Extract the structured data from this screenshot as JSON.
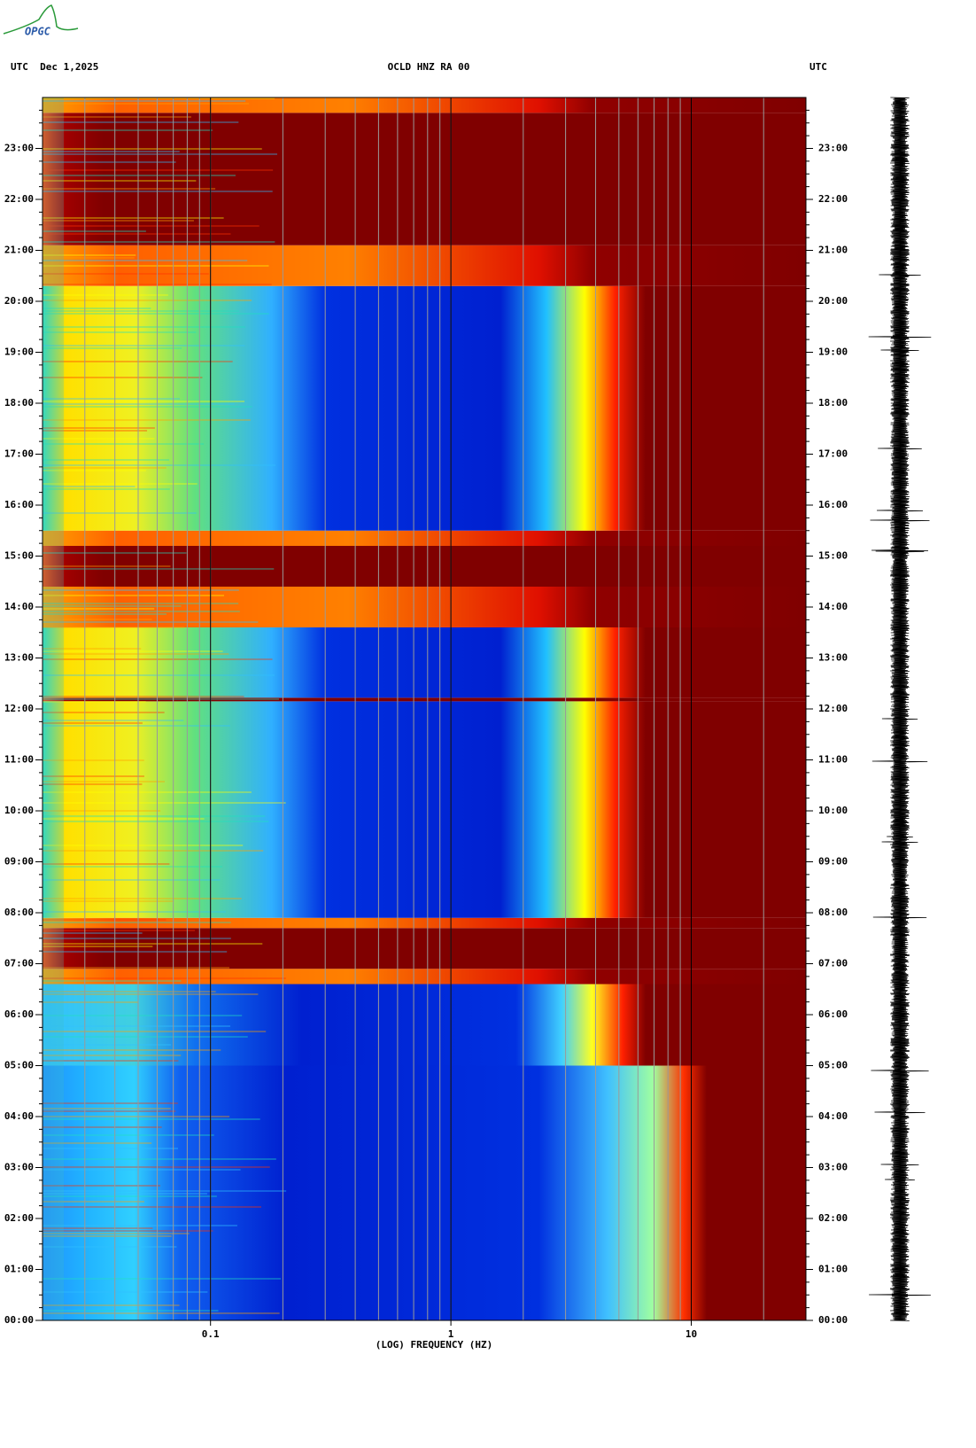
{
  "header": {
    "logo": "OPGC",
    "left": "UTC  Dec 1,2025",
    "center": "OCLD HNZ RA 00",
    "right": "UTC"
  },
  "chart_data": {
    "type": "spectrogram",
    "xlabel": "(LOG) FREQUENCY (HZ)",
    "xscale": "log",
    "xlim": [
      0.02,
      30
    ],
    "xticks": [
      0.1,
      1,
      10
    ],
    "ylim": [
      0,
      24
    ],
    "yticks": [
      {
        "value": 0,
        "label": "00:00"
      },
      {
        "value": 1,
        "label": "01:00"
      },
      {
        "value": 2,
        "label": "02:00"
      },
      {
        "value": 3,
        "label": "03:00"
      },
      {
        "value": 4,
        "label": "04:00"
      },
      {
        "value": 5,
        "label": "05:00"
      },
      {
        "value": 6,
        "label": "06:00"
      },
      {
        "value": 7,
        "label": "07:00"
      },
      {
        "value": 8,
        "label": "08:00"
      },
      {
        "value": 9,
        "label": "09:00"
      },
      {
        "value": 10,
        "label": "10:00"
      },
      {
        "value": 11,
        "label": "11:00"
      },
      {
        "value": 12,
        "label": "12:00"
      },
      {
        "value": 13,
        "label": "13:00"
      },
      {
        "value": 14,
        "label": "14:00"
      },
      {
        "value": 15,
        "label": "15:00"
      },
      {
        "value": 16,
        "label": "16:00"
      },
      {
        "value": 17,
        "label": "17:00"
      },
      {
        "value": 18,
        "label": "18:00"
      },
      {
        "value": 19,
        "label": "19:00"
      },
      {
        "value": 20,
        "label": "20:00"
      },
      {
        "value": 21,
        "label": "21:00"
      },
      {
        "value": 22,
        "label": "22:00"
      },
      {
        "value": 23,
        "label": "23:00"
      }
    ]
  }
}
